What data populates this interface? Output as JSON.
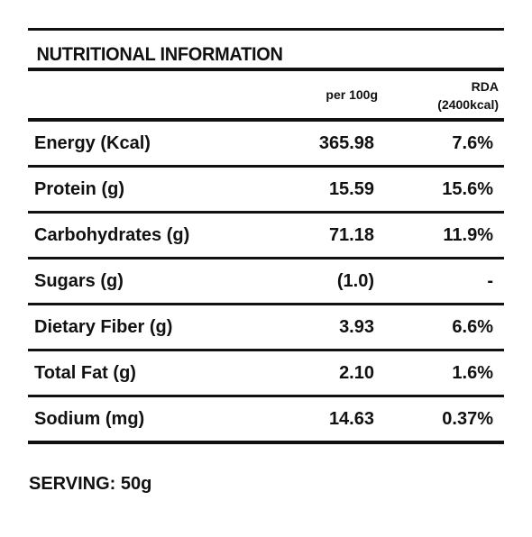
{
  "table": {
    "title": "NUTRITIONAL INFORMATION",
    "header": {
      "per_100g": "per 100g",
      "rda_line1": "RDA",
      "rda_line2": "(2400kcal)"
    },
    "rows": [
      {
        "label": "Energy (Kcal)",
        "per_100g": "365.98",
        "rda": "7.6%"
      },
      {
        "label": "Protein (g)",
        "per_100g": "15.59",
        "rda": "15.6%"
      },
      {
        "label": "Carbohydrates (g)",
        "per_100g": "71.18",
        "rda": "11.9%"
      },
      {
        "label": "Sugars (g)",
        "per_100g": "(1.0)",
        "rda": "-"
      },
      {
        "label": "Dietary Fiber (g)",
        "per_100g": "3.93",
        "rda": "6.6%"
      },
      {
        "label": "Total Fat (g)",
        "per_100g": "2.10",
        "rda": "1.6%"
      },
      {
        "label": "Sodium (mg)",
        "per_100g": "14.63",
        "rda": "0.37%"
      }
    ]
  },
  "serving": "SERVING: 50g"
}
